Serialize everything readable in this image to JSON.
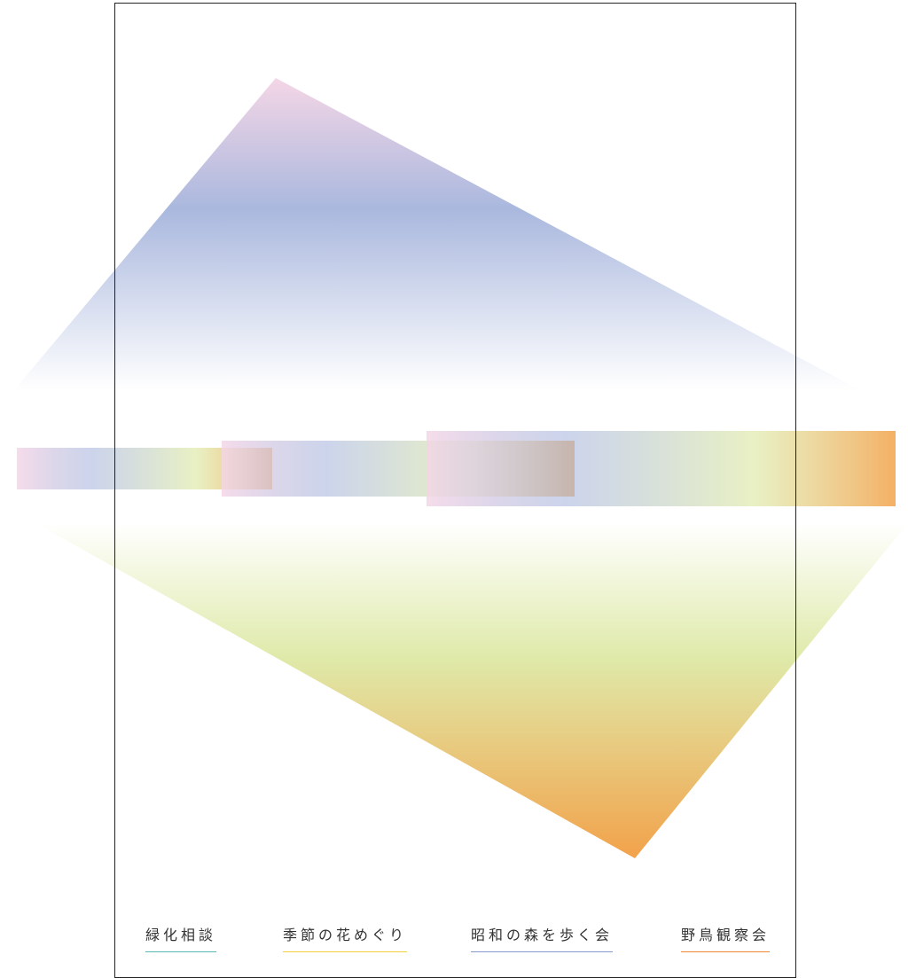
{
  "nav": {
    "items": [
      {
        "label": "緑化相談",
        "color": "#5cb8b2"
      },
      {
        "label": "季節の花めぐり",
        "color": "#f2cf3f"
      },
      {
        "label": "昭和の森を歩く会",
        "color": "#8a98d0"
      },
      {
        "label": "野鳥観察会",
        "color": "#f0883a"
      }
    ]
  },
  "colors": {
    "pink": "#f4d6e6",
    "blue": "#aab8de",
    "green": "#dfeaaa",
    "orange": "#f2a24a",
    "frame": "#222222"
  }
}
